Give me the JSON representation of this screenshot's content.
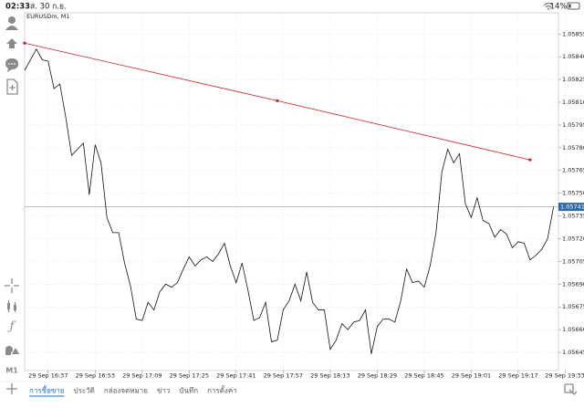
{
  "status_bar": {
    "time": "02:33",
    "date": "ส. 30 ก.ย.",
    "battery": "14%"
  },
  "sidebar": {
    "timeframe": "M1"
  },
  "tabs": [
    "การซื้อขาย",
    "ประวัติ",
    "กล่องจดหมาย",
    "ข่าว",
    "บันทึก",
    "การตั้งค่า"
  ],
  "chart_data": {
    "type": "line",
    "title": "EURUSDm, M1",
    "categories": [
      null,
      null,
      null,
      null,
      "29 Sep 16:37",
      null,
      null,
      null,
      null,
      null,
      null,
      null,
      "29 Sep 16:53",
      null,
      null,
      null,
      null,
      null,
      null,
      null,
      "29 Sep 17:09",
      null,
      null,
      null,
      null,
      null,
      null,
      null,
      "29 Sep 17:25",
      null,
      null,
      null,
      null,
      null,
      null,
      null,
      "29 Sep 17:41",
      null,
      null,
      null,
      null,
      null,
      null,
      null,
      "29 Sep 17:57",
      null,
      null,
      null,
      null,
      null,
      null,
      null,
      "29 Sep 18:13",
      null,
      null,
      null,
      null,
      null,
      null,
      null,
      "29 Sep 18:29",
      null,
      null,
      null,
      null,
      null,
      null,
      null,
      "29 Sep 18:45",
      null,
      null,
      null,
      null,
      null,
      null,
      null,
      "29 Sep 19:01",
      null,
      null,
      null,
      null,
      null,
      null,
      null,
      "29 Sep 19:17",
      null,
      null,
      null,
      null,
      null,
      null,
      null,
      "29 Sep 19:33"
    ],
    "values": [
      1.05831,
      1.05838,
      1.05845,
      1.05838,
      1.05837,
      1.05819,
      1.05822,
      1.058,
      1.05775,
      1.05779,
      1.05783,
      1.05749,
      1.05782,
      1.0577,
      1.05734,
      1.05724,
      1.05724,
      1.05704,
      1.05689,
      1.05667,
      1.05666,
      1.05678,
      1.05673,
      1.05685,
      1.0569,
      1.05688,
      1.05691,
      1.057,
      1.05708,
      1.05702,
      1.05706,
      1.05708,
      1.05705,
      1.0571,
      1.05717,
      1.05702,
      1.05691,
      1.05704,
      1.05686,
      1.05666,
      1.05668,
      1.05678,
      1.05652,
      1.05653,
      1.05673,
      1.05679,
      1.0569,
      1.05679,
      1.05698,
      1.05678,
      1.05673,
      1.05673,
      1.05647,
      1.05653,
      1.05664,
      1.0566,
      1.05665,
      1.05666,
      1.05673,
      1.05644,
      1.05662,
      1.05667,
      1.05667,
      1.05665,
      1.05679,
      1.057,
      1.05691,
      1.05692,
      1.05688,
      1.05702,
      1.05724,
      1.05764,
      1.05779,
      1.0577,
      1.05776,
      1.05743,
      1.05734,
      1.05747,
      1.05732,
      1.0573,
      1.05721,
      1.05726,
      1.05723,
      1.05714,
      1.05718,
      1.05717,
      1.05706,
      1.05709,
      1.05713,
      1.0572,
      1.05741,
      null,
      null
    ],
    "color": "#111111",
    "ylim": [
      1.05633,
      1.05869
    ],
    "yticks": [
      1.05855,
      {
        "value": 1.0584,
        "label": "1.05840"
      },
      1.05825,
      {
        "value": 1.0581,
        "label": "1.05810"
      },
      1.05795,
      {
        "value": 1.0578,
        "label": "1.05780"
      },
      1.05765,
      {
        "value": 1.0575,
        "label": "1.05750"
      },
      1.05735,
      {
        "value": 1.0572,
        "label": "1.05720"
      },
      1.05705,
      {
        "value": 1.0569,
        "label": "1.05690"
      },
      1.05675,
      {
        "value": 1.0566,
        "label": "1.05660"
      },
      1.05645
    ],
    "grid": true,
    "current_price": {
      "value": 1.05741,
      "color": "#2d6aa6"
    },
    "trendline": {
      "color": "#cc2020",
      "points": [
        [
          0,
          1.05849
        ],
        [
          43,
          1.05811
        ],
        [
          86,
          1.05772
        ]
      ]
    }
  }
}
